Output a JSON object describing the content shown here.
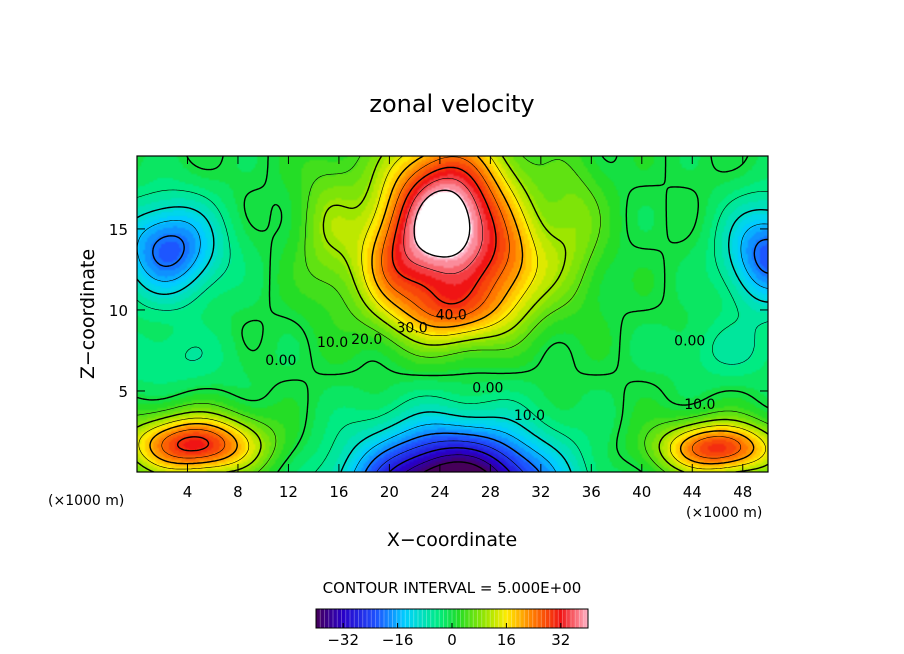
{
  "chart_data": {
    "type": "heatmap",
    "title": "zonal velocity",
    "xlabel": "X−coordinate",
    "ylabel": "Z−coordinate",
    "x_unit_left": "(×1000 m)",
    "x_unit_right": "(×1000 m)",
    "xlim": [
      0,
      50
    ],
    "ylim": [
      0,
      19.5
    ],
    "xticks": [
      "4",
      "8",
      "12",
      "16",
      "20",
      "24",
      "28",
      "32",
      "36",
      "40",
      "44",
      "48"
    ],
    "yticks": [
      "5",
      "10",
      "15"
    ],
    "contour_interval_text": "CONTOUR INTERVAL = 5.000E+00",
    "contour_interval": 5.0,
    "colorbar": {
      "range": [
        -40,
        40
      ],
      "ticks": [
        "−32",
        "−16",
        "0",
        "16",
        "32"
      ],
      "colormap": "rainbow (purple → blue → cyan → green → yellow → red → pink)"
    },
    "missing_color": "#ffffff",
    "contour_labels": [
      {
        "text": "40.0",
        "x": 24.9,
        "z": 9.4
      },
      {
        "text": "30.0",
        "x": 21.8,
        "z": 8.6
      },
      {
        "text": "20.0",
        "x": 18.2,
        "z": 7.9
      },
      {
        "text": "10.0",
        "x": 15.5,
        "z": 7.7
      },
      {
        "text": "0.00",
        "x": 11.4,
        "z": 6.6
      },
      {
        "text": "0.00",
        "x": 27.8,
        "z": 4.9
      },
      {
        "text": "10.0",
        "x": 31.1,
        "z": 3.2
      },
      {
        "text": "0.00",
        "x": 43.8,
        "z": 7.8
      },
      {
        "text": "10.0",
        "x": 44.6,
        "z": 3.9
      }
    ],
    "features": [
      {
        "name": "upper jet core",
        "x": 24.5,
        "z": 15.5,
        "sx": 5.0,
        "sz": 5.0,
        "value": 46
      },
      {
        "name": "upper jet left lobe",
        "x": 20.0,
        "z": 12.5,
        "sx": 3.0,
        "sz": 3.0,
        "value": 12
      },
      {
        "name": "upper jet right lobe",
        "x": 30.0,
        "z": 12.5,
        "sx": 3.0,
        "sz": 3.0,
        "value": 12
      },
      {
        "name": "upper jet tail",
        "x": 25.0,
        "z": 9.8,
        "sx": 4.5,
        "sz": 2.0,
        "value": 14
      },
      {
        "name": "upper jet stem left",
        "x": 15.0,
        "z": 15.0,
        "sx": 2.5,
        "sz": 4.5,
        "value": 8
      },
      {
        "name": "upper jet stem right",
        "x": 34.5,
        "z": 15.0,
        "sx": 2.5,
        "sz": 4.5,
        "value": 8
      },
      {
        "name": "lower reverse flow",
        "x": 25.0,
        "z": -1.5,
        "sx": 7.5,
        "sz": 4.0,
        "value": -52
      },
      {
        "name": "left cell",
        "x": 2.5,
        "z": 13.8,
        "sx": 4.0,
        "sz": 3.0,
        "value": -22
      },
      {
        "name": "right cell",
        "x": 50.0,
        "z": 13.5,
        "sx": 3.5,
        "sz": 3.2,
        "value": -22
      },
      {
        "name": "left surface maximum",
        "x": 4.5,
        "z": 1.7,
        "sx": 5.0,
        "sz": 1.8,
        "value": 32
      },
      {
        "name": "right surface maximum",
        "x": 46.0,
        "z": 1.5,
        "sx": 4.5,
        "sz": 1.6,
        "value": 30
      },
      {
        "name": "left mid-level weak",
        "x": 2.0,
        "z": 7.0,
        "sx": 6.0,
        "sz": 2.0,
        "value": -5
      },
      {
        "name": "right mid-level weak",
        "x": 47.0,
        "z": 7.5,
        "sx": 5.0,
        "sz": 2.0,
        "value": -5
      }
    ]
  }
}
